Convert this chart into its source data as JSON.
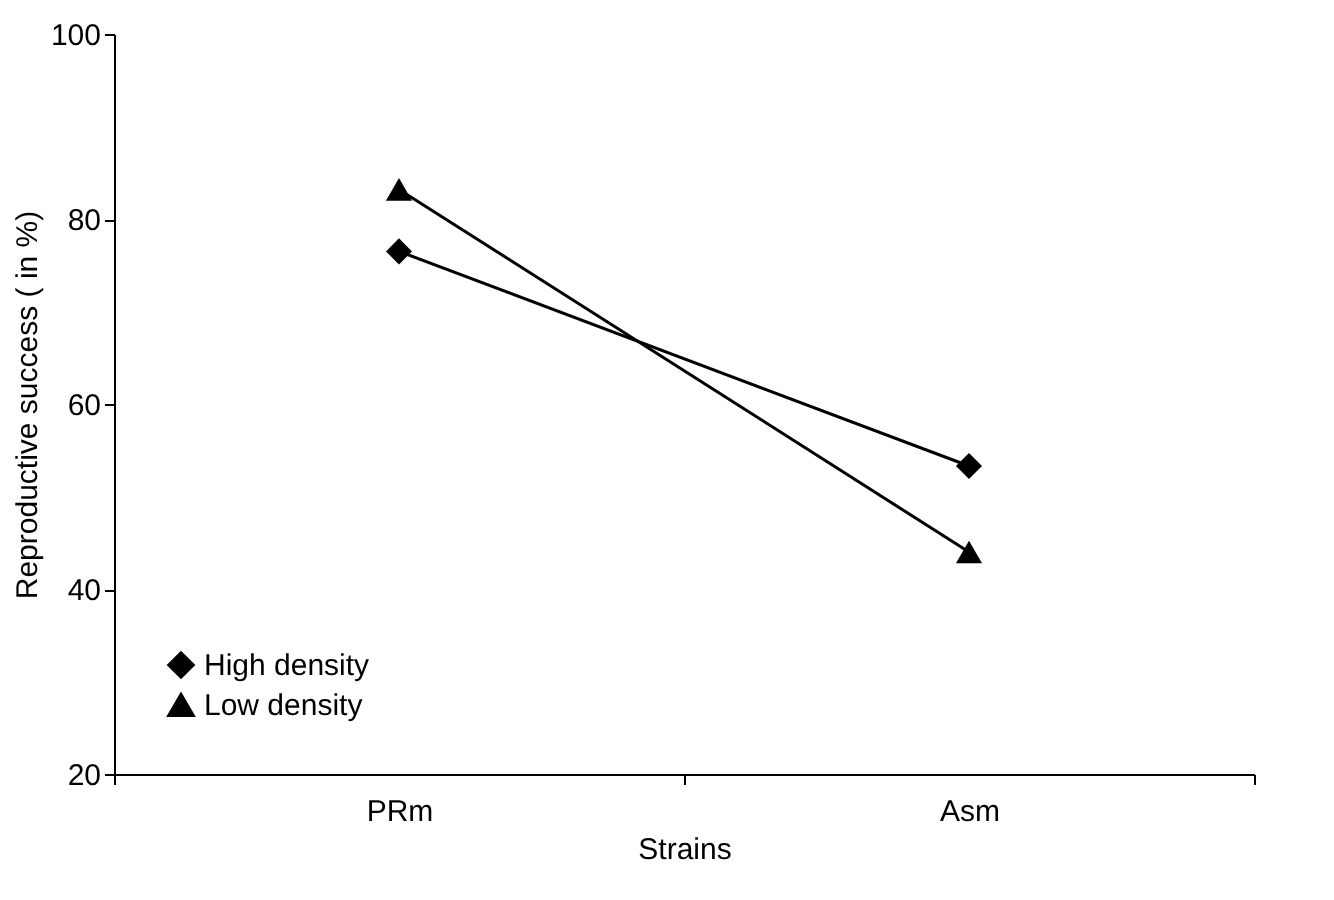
{
  "chart_data": {
    "type": "line",
    "xlabel": "Strains",
    "ylabel": "Reproductive success ( in %)",
    "categories": [
      "PRm",
      "Asm"
    ],
    "series": [
      {
        "name": "High density",
        "color": "#000000",
        "marker": "diamond",
        "values": [
          76.5,
          53.3
        ]
      },
      {
        "name": "Low density",
        "color": "#000000",
        "marker": "triangle",
        "values": [
          83.2,
          44.0
        ]
      }
    ],
    "ylim": [
      20,
      100
    ],
    "yticks": [
      20,
      40,
      60,
      80,
      100
    ],
    "grid": false,
    "legend": "bottom left",
    "line_style": "solid"
  }
}
